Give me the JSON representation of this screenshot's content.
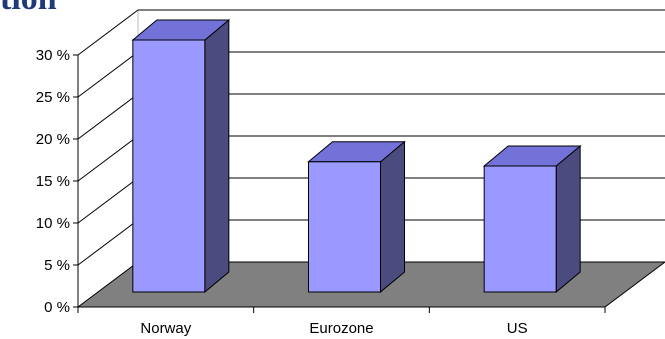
{
  "header": {
    "title_fragment": "tion"
  },
  "chart_data": {
    "type": "bar",
    "three_d": true,
    "categories": [
      "Norway",
      "Eurozone",
      "US"
    ],
    "values": [
      30,
      15.5,
      15
    ],
    "ylim": [
      0,
      30
    ],
    "yticks": [
      0,
      5,
      10,
      15,
      20,
      25,
      30
    ],
    "ytick_labels": [
      "0 %",
      "5 %",
      "10 %",
      "15 %",
      "20 %",
      "25 %",
      "30 %"
    ],
    "grid": true,
    "legend": "none",
    "colors": {
      "bar_front": "#9999ff",
      "bar_top": "#7272d8",
      "bar_side": "#4b4b80",
      "floor": "#808080",
      "grid": "#000000"
    }
  }
}
